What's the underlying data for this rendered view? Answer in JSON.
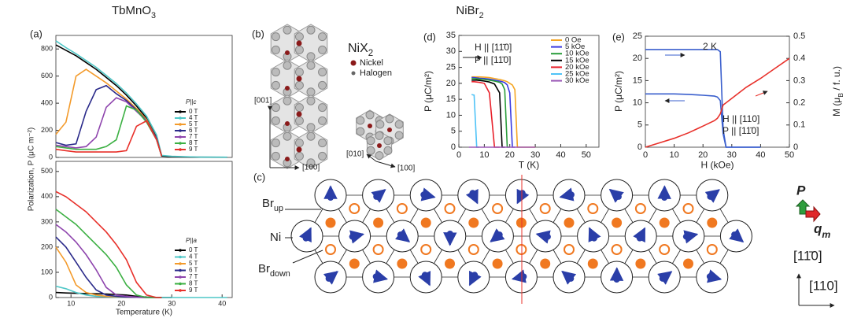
{
  "header": {
    "left": [
      "TbMnO",
      "3"
    ],
    "right": [
      "NiBr",
      "2"
    ]
  },
  "chart_data": [
    {
      "type": "line",
      "panel": "(a)",
      "legend_title": "P||c",
      "ylabel": "Polarization, P (μC m⁻²)",
      "x": [
        7,
        9,
        11,
        13,
        15,
        17,
        19,
        21,
        23,
        25,
        27,
        28,
        30,
        35,
        41
      ],
      "xlim": [
        7,
        42
      ],
      "ylim": [
        0,
        900
      ],
      "yticks": [
        0,
        200,
        400,
        600,
        800
      ],
      "series": [
        {
          "name": "0 T",
          "color": "#000000",
          "values": [
            830,
            790,
            750,
            700,
            650,
            590,
            530,
            460,
            380,
            290,
            150,
            10,
            5,
            2,
            1
          ]
        },
        {
          "name": "4 T",
          "color": "#4fc7c7",
          "values": [
            860,
            810,
            765,
            715,
            665,
            605,
            545,
            475,
            395,
            305,
            165,
            15,
            8,
            3,
            2
          ]
        },
        {
          "name": "5 T",
          "color": "#f39a2a",
          "values": [
            170,
            260,
            600,
            650,
            600,
            550,
            490,
            430,
            360,
            280,
            140,
            10,
            null,
            null,
            null
          ]
        },
        {
          "name": "6 T",
          "color": "#2a2a8a",
          "values": [
            110,
            90,
            100,
            340,
            500,
            530,
            470,
            420,
            350,
            270,
            140,
            10,
            null,
            null,
            null
          ]
        },
        {
          "name": "7 T",
          "color": "#8e44ad",
          "values": [
            90,
            80,
            70,
            80,
            150,
            370,
            440,
            410,
            340,
            270,
            130,
            10,
            null,
            null,
            null
          ]
        },
        {
          "name": "8 T",
          "color": "#3cb043",
          "values": [
            80,
            70,
            60,
            60,
            60,
            80,
            130,
            380,
            350,
            260,
            130,
            10,
            null,
            null,
            null
          ]
        },
        {
          "name": "9 T",
          "color": "#e8302a",
          "values": [
            60,
            50,
            40,
            40,
            40,
            40,
            40,
            50,
            230,
            270,
            130,
            10,
            null,
            null,
            null
          ]
        }
      ]
    },
    {
      "type": "line",
      "legend_title": "P||a",
      "xlabel": "Temperature (K)",
      "x": [
        7,
        9,
        11,
        13,
        15,
        17,
        19,
        21,
        23,
        25,
        27,
        28,
        30,
        35,
        41
      ],
      "xlim": [
        7,
        42
      ],
      "xticks": [
        10,
        20,
        30,
        40
      ],
      "ylim": [
        0,
        540
      ],
      "yticks": [
        0,
        100,
        200,
        300,
        400,
        500
      ],
      "series": [
        {
          "name": "0 T",
          "color": "#000000",
          "values": [
            20,
            18,
            17,
            16,
            15,
            14,
            12,
            10,
            5,
            2,
            0,
            0,
            0,
            null,
            null
          ]
        },
        {
          "name": "4 T",
          "color": "#4fc7c7",
          "values": [
            45,
            35,
            20,
            10,
            5,
            3,
            2,
            2,
            1,
            0,
            0,
            0,
            0,
            0,
            0
          ]
        },
        {
          "name": "5 T",
          "color": "#f39a2a",
          "values": [
            200,
            140,
            50,
            20,
            10,
            5,
            3,
            2,
            1,
            0,
            0,
            0,
            null,
            null,
            null
          ]
        },
        {
          "name": "6 T",
          "color": "#2a2a8a",
          "values": [
            240,
            200,
            140,
            80,
            30,
            10,
            5,
            2,
            1,
            0,
            0,
            0,
            null,
            null,
            null
          ]
        },
        {
          "name": "7 T",
          "color": "#8e44ad",
          "values": [
            290,
            260,
            220,
            170,
            110,
            40,
            10,
            5,
            2,
            0,
            0,
            0,
            null,
            null,
            null
          ]
        },
        {
          "name": "8 T",
          "color": "#3cb043",
          "values": [
            350,
            320,
            290,
            250,
            210,
            170,
            120,
            50,
            10,
            0,
            0,
            0,
            null,
            null,
            null
          ]
        },
        {
          "name": "9 T",
          "color": "#e8302a",
          "values": [
            420,
            400,
            370,
            340,
            300,
            260,
            210,
            150,
            60,
            10,
            0,
            0,
            null,
            null,
            null
          ]
        }
      ]
    },
    {
      "type": "line",
      "panel": "(d)",
      "xlabel": "T (K)",
      "ylabel": "P (μC/m²)",
      "annotations": [
        "H || [11̄0]",
        "P || [11̄0]"
      ],
      "x": [
        4,
        5,
        6,
        7,
        8,
        10,
        12,
        14,
        16,
        17,
        18,
        19,
        20,
        21,
        22,
        23,
        24,
        30
      ],
      "xlim": [
        0,
        55
      ],
      "xticks": [
        0,
        10,
        20,
        30,
        40,
        50
      ],
      "ylim": [
        0,
        35
      ],
      "yticks": [
        0,
        5,
        10,
        15,
        20,
        25,
        30,
        35
      ],
      "series": [
        {
          "name": "0 Oe",
          "color": "#f5a623",
          "values": [
            null,
            22,
            22,
            22,
            22,
            21.9,
            21.8,
            21.5,
            21.2,
            21,
            20.8,
            20.5,
            20,
            19.5,
            18,
            0,
            0,
            0
          ]
        },
        {
          "name": "5 kOe",
          "color": "#3a3adf",
          "values": [
            null,
            21.8,
            21.8,
            21.7,
            21.6,
            21.5,
            21.3,
            21,
            20.7,
            20.5,
            20.2,
            19.5,
            17,
            0,
            0,
            null,
            null,
            null
          ]
        },
        {
          "name": "10 kOe",
          "color": "#2a9d3a",
          "values": [
            null,
            21.5,
            21.5,
            21.4,
            21.3,
            21.2,
            21,
            20.7,
            20.3,
            19.8,
            18,
            0,
            0,
            null,
            null,
            null,
            null,
            null
          ]
        },
        {
          "name": "15 kOe",
          "color": "#000000",
          "values": [
            null,
            21,
            21,
            21,
            20.9,
            20.7,
            20.4,
            19.8,
            17,
            0,
            0,
            null,
            null,
            null,
            null,
            null,
            null,
            null
          ]
        },
        {
          "name": "20 kOe",
          "color": "#e8202a",
          "values": [
            null,
            20.5,
            20.5,
            20.4,
            20.3,
            20,
            17,
            0,
            0,
            null,
            null,
            null,
            null,
            null,
            null,
            null,
            null,
            null
          ]
        },
        {
          "name": "25 kOe",
          "color": "#4fc3f7",
          "values": [
            null,
            16.5,
            16.3,
            0,
            0,
            null,
            null,
            null,
            null,
            null,
            null,
            null,
            null,
            null,
            null,
            null,
            null,
            null
          ]
        },
        {
          "name": "30 kOe",
          "color": "#9b59b6",
          "values": [
            0,
            0,
            0,
            0,
            0,
            0,
            0,
            0,
            0,
            0,
            0,
            0,
            0,
            0,
            0,
            0,
            0,
            0
          ]
        }
      ]
    },
    {
      "type": "line",
      "panel": "(e)",
      "xlabel": "H (kOe)",
      "ylabel": "P (μC/m²)",
      "y2label": [
        "M (μ",
        "B",
        " / f. u.)"
      ],
      "annotations": [
        "2 K",
        "H || [110]",
        "P || [11̄0]"
      ],
      "x": [
        0,
        5,
        10,
        15,
        20,
        24,
        25,
        26,
        27,
        28,
        30,
        35,
        40,
        45,
        50
      ],
      "xlim": [
        0,
        50
      ],
      "xticks": [
        0,
        10,
        20,
        30,
        40,
        50
      ],
      "ylim": [
        0,
        25
      ],
      "yticks": [
        0,
        5,
        10,
        15,
        20,
        25
      ],
      "y2lim": [
        0,
        0.5
      ],
      "y2ticks": [
        0,
        0.1,
        0.2,
        0.3,
        0.4,
        0.5
      ],
      "series": [
        {
          "color": "#3a5fcd",
          "values": [
            22,
            22,
            22,
            22,
            22,
            22,
            22,
            21.5,
            4,
            0,
            0,
            0,
            0,
            null,
            null
          ]
        },
        {
          "color": "#3a5fcd",
          "values": [
            12,
            12,
            12,
            11.9,
            11.7,
            11.5,
            11.3,
            10.5,
            3,
            0,
            0,
            0,
            0,
            null,
            null
          ]
        },
        {
          "color": "#e8302a",
          "axis": "y2",
          "values": [
            0,
            0.02,
            0.04,
            0.065,
            0.095,
            0.12,
            0.13,
            0.15,
            0.19,
            0.2,
            0.22,
            0.27,
            0.31,
            0.355,
            0.4
          ]
        }
      ]
    }
  ],
  "panel_b": {
    "label": "(b)",
    "title": [
      "NiX",
      "2"
    ],
    "legend": [
      "Nickel",
      "Halogen"
    ],
    "axes": [
      "[001]",
      "[100]",
      "[010]",
      "[100]"
    ]
  },
  "panel_c": {
    "label": "(c)",
    "sites": [
      [
        "Br",
        "up"
      ],
      [
        "Ni"
      ],
      [
        "Br",
        "down"
      ]
    ],
    "arrows": [
      "P",
      [
        "q",
        "m"
      ]
    ],
    "directions": [
      "[11̄0]",
      "[110]"
    ]
  }
}
